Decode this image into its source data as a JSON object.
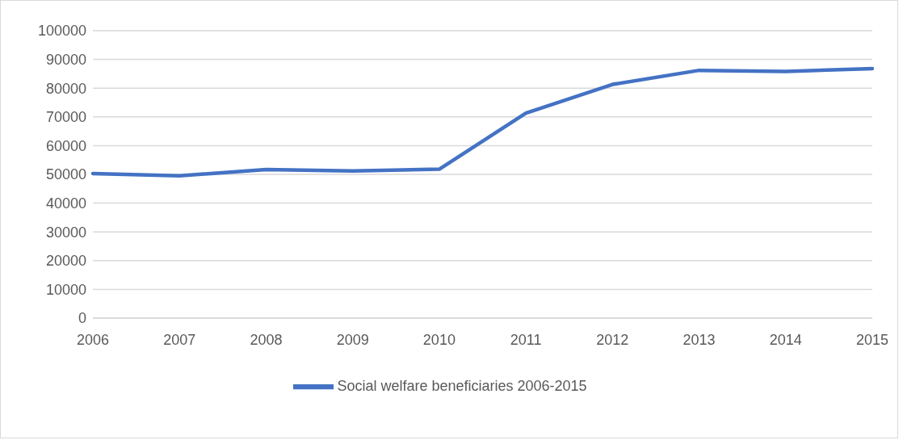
{
  "chart_data": {
    "type": "line",
    "categories": [
      "2006",
      "2007",
      "2008",
      "2009",
      "2010",
      "2011",
      "2012",
      "2013",
      "2014",
      "2015"
    ],
    "series": [
      {
        "name": "Social welfare beneficiaries 2006-2015",
        "color": "#4472c4",
        "values": [
          50300,
          49500,
          51700,
          51200,
          51800,
          71300,
          81300,
          86200,
          85800,
          86800
        ]
      }
    ],
    "ylim": [
      0,
      100000
    ],
    "yticks": [
      0,
      10000,
      20000,
      30000,
      40000,
      50000,
      60000,
      70000,
      80000,
      90000,
      100000
    ],
    "grid": "y",
    "legend": "bottom",
    "marker": "none",
    "line_style": "solid"
  }
}
